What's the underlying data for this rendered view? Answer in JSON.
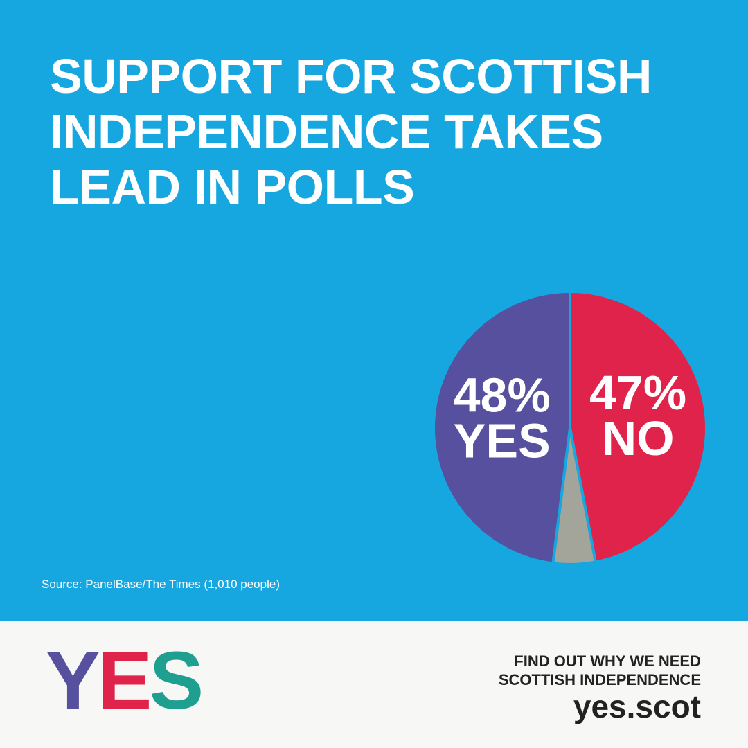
{
  "chart_data": {
    "type": "pie",
    "title": "SUPPORT FOR SCOTTISH\nINDEPENDENCE TAKES\nLEAD IN POLLS",
    "categories": [
      "NO",
      null,
      "YES"
    ],
    "values": [
      47,
      5,
      48
    ],
    "value_labels": [
      "47%",
      null,
      "48%"
    ],
    "colors": [
      "#e0234a",
      "#a3a49a",
      "#56509e"
    ],
    "source": "Source: PanelBase/The Times (1,010 people)"
  },
  "footer": {
    "logo": "YES",
    "lines": [
      "FIND OUT WHY WE NEED",
      "SCOTTISH INDEPENDENCE"
    ],
    "url": "yes.scot"
  }
}
